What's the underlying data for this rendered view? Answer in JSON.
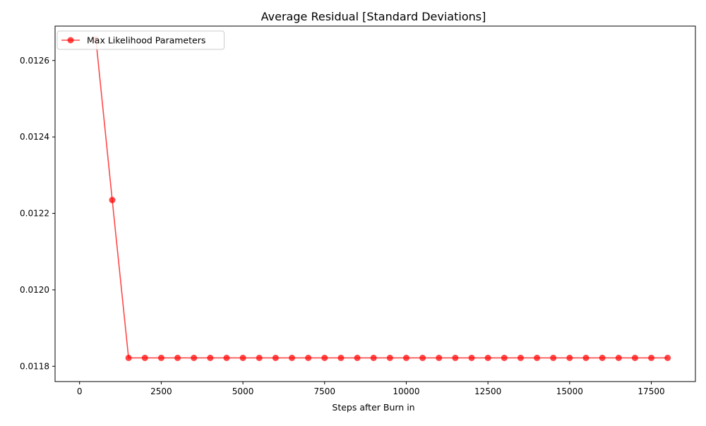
{
  "chart_data": {
    "type": "line",
    "title": "Average Residual [Standard Deviations]",
    "xlabel": "Steps after Burn in",
    "ylabel": "",
    "xlim": [
      -750,
      18850
    ],
    "ylim": [
      0.01176,
      0.01269
    ],
    "xticks": [
      0,
      2500,
      5000,
      7500,
      10000,
      12500,
      15000,
      17500
    ],
    "xtick_labels": [
      "0",
      "2500",
      "5000",
      "7500",
      "10000",
      "12500",
      "15000",
      "17500"
    ],
    "yticks": [
      0.0118,
      0.012,
      0.0122,
      0.0124,
      0.0126
    ],
    "ytick_labels": [
      "0.0118",
      "0.0120",
      "0.0122",
      "0.0124",
      "0.0126"
    ],
    "grid": false,
    "legend_position": "top-left",
    "series": [
      {
        "name": "Max Likelihood Parameters",
        "color": "#ff0000",
        "marker": "circle",
        "x": [
          500,
          1000,
          1500,
          2000,
          2500,
          3000,
          3500,
          4000,
          4500,
          5000,
          5500,
          6000,
          6500,
          7000,
          7500,
          8000,
          8500,
          9000,
          9500,
          10000,
          10500,
          11000,
          11500,
          12000,
          12500,
          13000,
          13500,
          14000,
          14500,
          15000,
          15500,
          16000,
          16500,
          17000,
          17500,
          18000
        ],
        "y": [
          0.012655,
          0.012235,
          0.011822,
          0.011822,
          0.011822,
          0.011822,
          0.011822,
          0.011822,
          0.011822,
          0.011822,
          0.011822,
          0.011822,
          0.011822,
          0.011822,
          0.011822,
          0.011822,
          0.011822,
          0.011822,
          0.011822,
          0.011822,
          0.011822,
          0.011822,
          0.011822,
          0.011822,
          0.011822,
          0.011822,
          0.011822,
          0.011822,
          0.011822,
          0.011822,
          0.011822,
          0.011822,
          0.011822,
          0.011822,
          0.011822,
          0.011822
        ]
      }
    ]
  }
}
